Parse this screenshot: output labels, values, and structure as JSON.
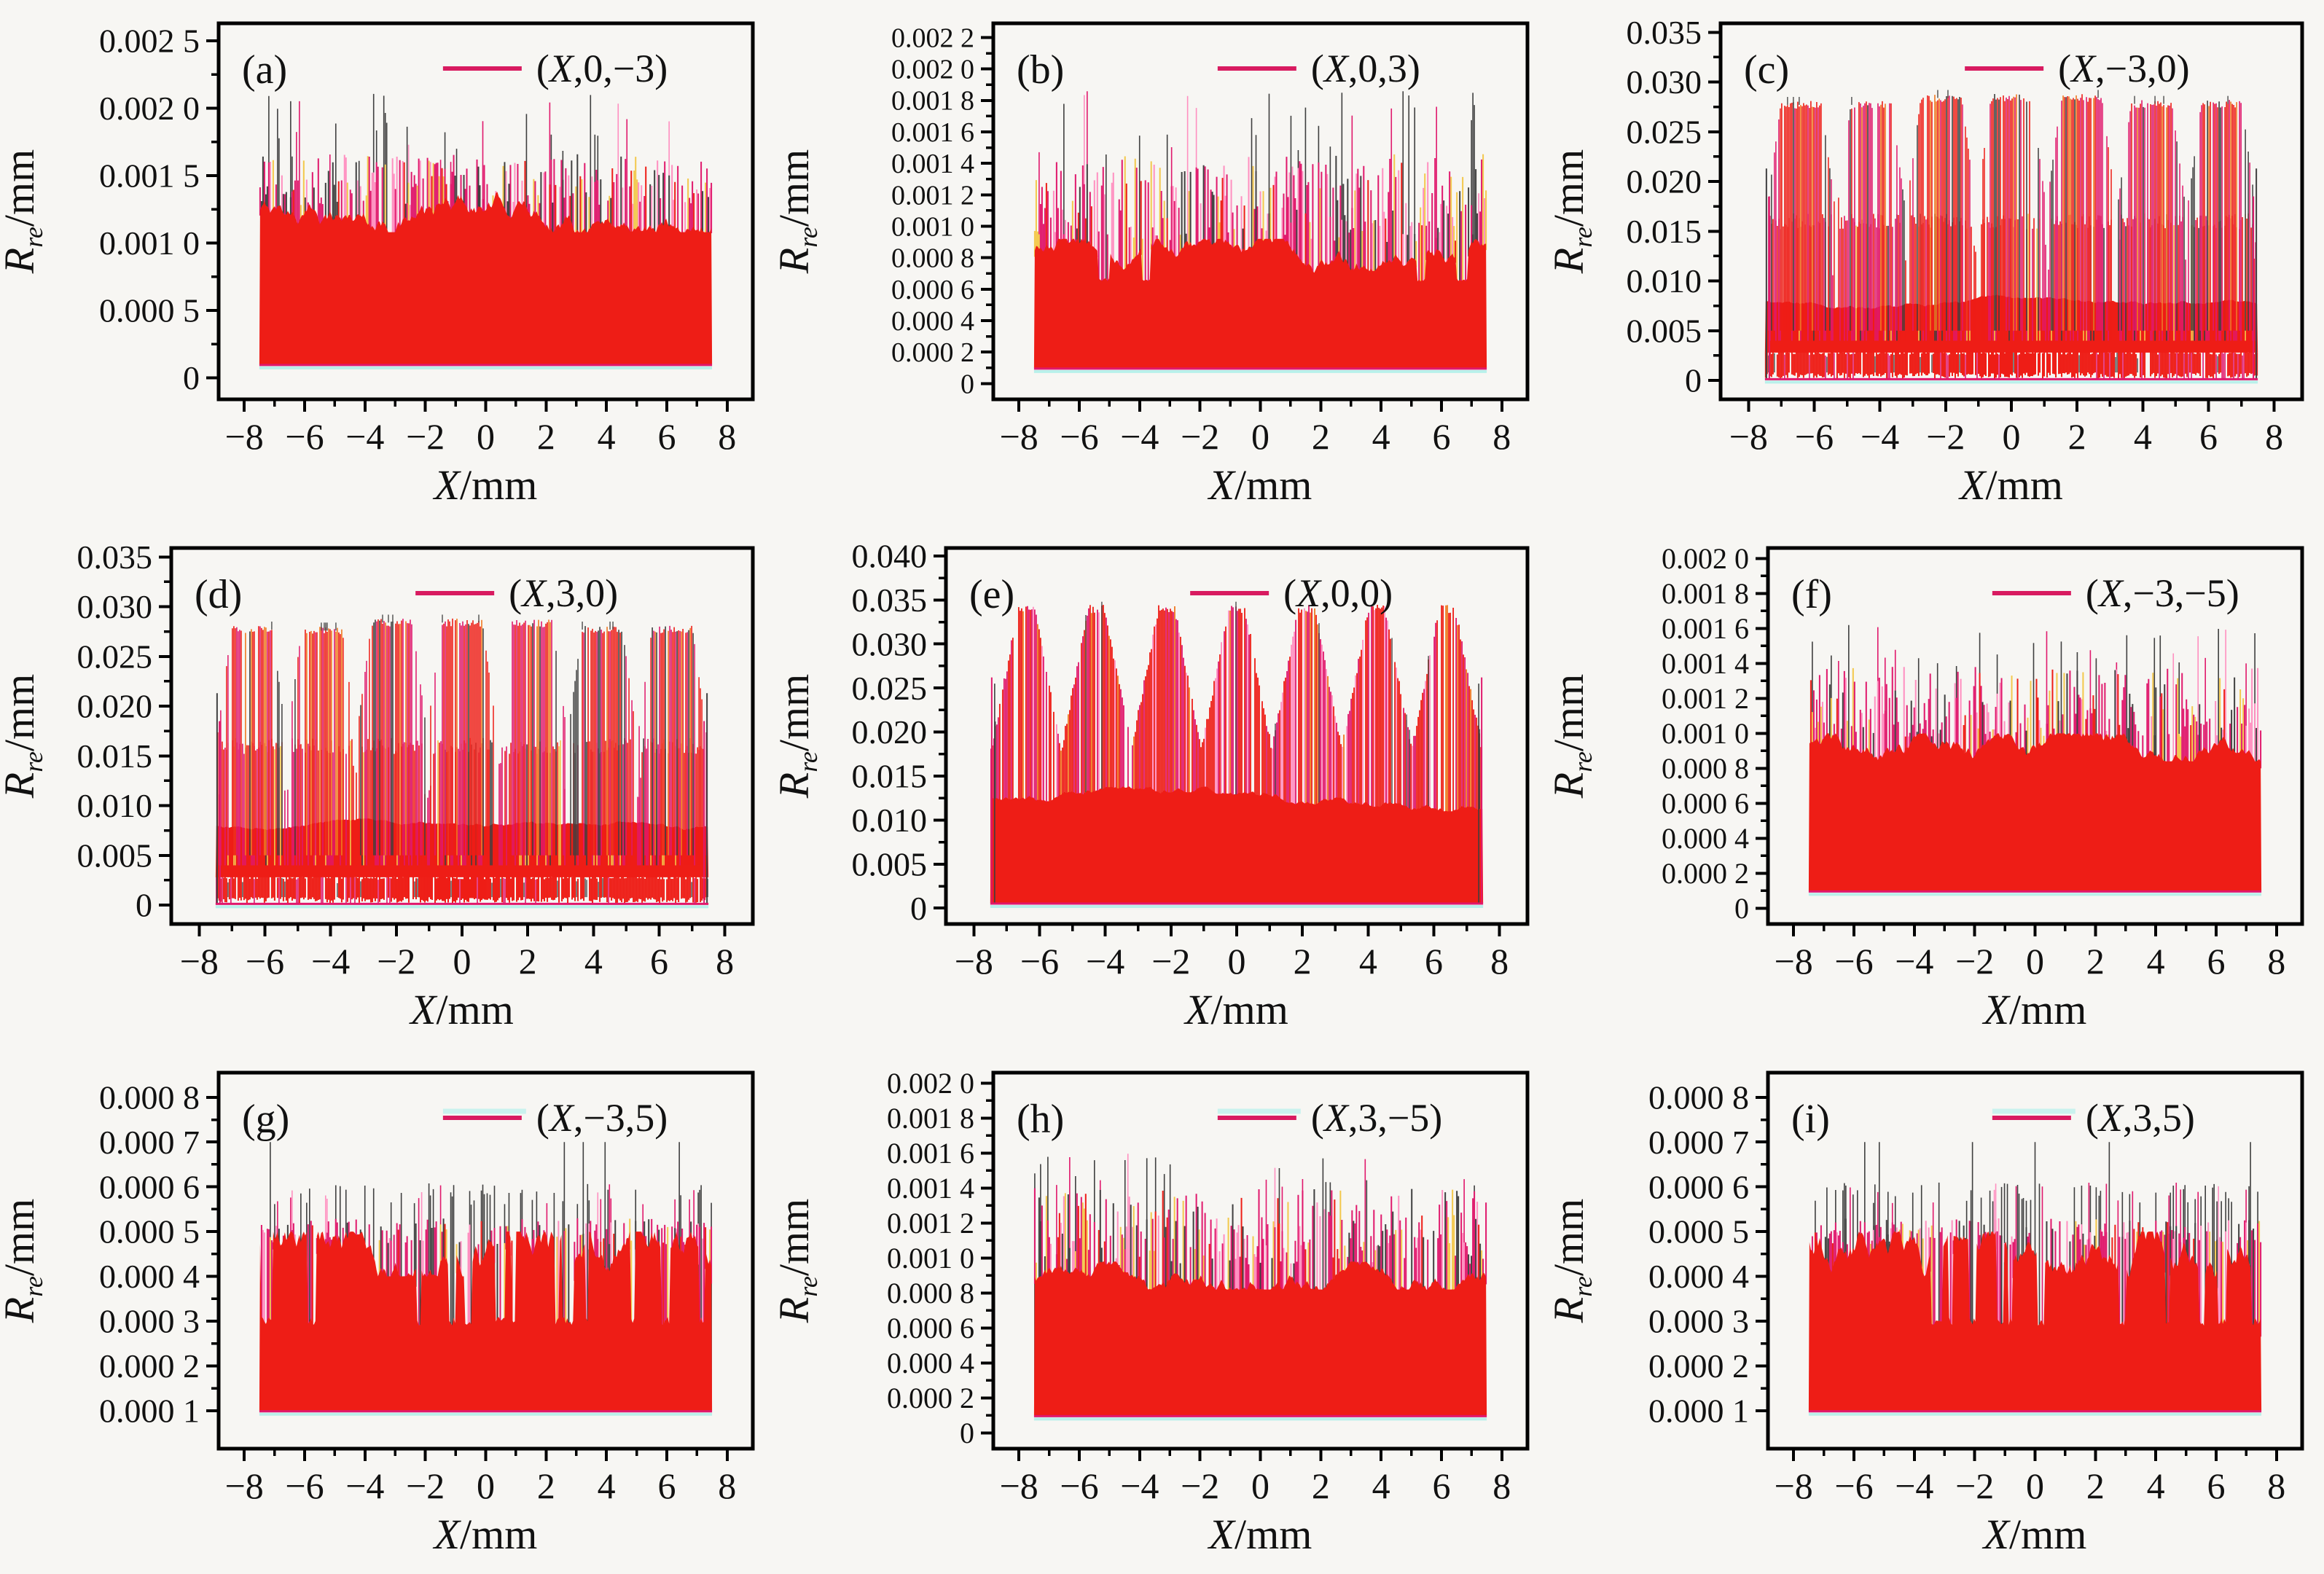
{
  "figure": {
    "background": "#f7f6f3",
    "grid": "3x3 subplots",
    "xlabel": "X/mm",
    "ylabel": {
      "main": "R",
      "sub": "re",
      "unit": "/mm"
    }
  },
  "colors": {
    "fill_red": "#ee1d16",
    "legend_line": "#d81b60",
    "crimson": "#e0186c",
    "dark": "#3f3f3f",
    "pink": "#ff8fc0",
    "yellow": "#f3c84b",
    "orange": "#f07820",
    "cyan_base": "#b9f0ea",
    "axis": "#000000",
    "text": "#111111",
    "legend_accent": "#c9f2ee"
  },
  "chart_data": [
    {
      "type": "area",
      "panel": "(a)",
      "legend": "(X,0,−3)",
      "xlabel": "X/mm",
      "ylabel": "Rre/mm",
      "xticks": [
        -8,
        -6,
        -4,
        -2,
        0,
        2,
        4,
        6,
        8
      ],
      "xtick_labels": [
        "−8",
        "−6",
        "−4",
        "−2",
        "0",
        "2",
        "4",
        "6",
        "8"
      ],
      "xlim": [
        -8.85,
        8.85
      ],
      "x_data_range": [
        -7.5,
        7.5
      ],
      "ytick_vals": [
        0,
        0.0005,
        0.001,
        0.0015,
        0.002,
        0.0025
      ],
      "ytick_labels": [
        "0",
        "0.000 5",
        "0.001 0",
        "0.001 5",
        "0.002 0",
        "0.002 5"
      ],
      "ylim": [
        -0.00016,
        0.00263
      ],
      "tick_font": 46,
      "margin_left": 300,
      "pattern": {
        "type": "noise",
        "base": 0.0001,
        "solid": {
          "mean": 0.00122,
          "step": 4e-05,
          "min": 0.00108,
          "max": 0.0014
        },
        "band": {
          "p": 0.7,
          "top": [
            0.00128,
            0.00166
          ]
        },
        "spikes": {
          "p": 0.14,
          "top": [
            0.00158,
            0.00212
          ]
        }
      }
    },
    {
      "type": "area",
      "panel": "(b)",
      "legend": "(X,0,3)",
      "xlabel": "X/mm",
      "ylabel": "Rre/mm",
      "xticks": [
        -8,
        -6,
        -4,
        -2,
        0,
        2,
        4,
        6,
        8
      ],
      "xtick_labels": [
        "−8",
        "−6",
        "−4",
        "−2",
        "0",
        "2",
        "4",
        "6",
        "8"
      ],
      "xlim": [
        -8.85,
        8.85
      ],
      "x_data_range": [
        -7.5,
        7.5
      ],
      "ytick_vals": [
        0,
        0.0002,
        0.0004,
        0.0006,
        0.0008,
        0.001,
        0.0012,
        0.0014,
        0.0016,
        0.0018,
        0.002,
        0.0022
      ],
      "ytick_labels": [
        "0",
        "0.000 2",
        "0.000 4",
        "0.000 6",
        "0.000 8",
        "0.001 0",
        "0.001 2",
        "0.001 4",
        "0.001 6",
        "0.001 8",
        "0.002 0",
        "0.002 2"
      ],
      "ylim": [
        -0.0001,
        0.00229
      ],
      "tick_font": 38,
      "margin_left": 300,
      "pattern": {
        "type": "noise",
        "base": 0.0001,
        "solid": {
          "mean": 0.00082,
          "step": 3e-05,
          "min": 0.0007,
          "max": 0.00092,
          "dip_to": 0.00066,
          "dip_p": 0.02
        },
        "band": {
          "p": 0.75,
          "top": [
            0.0009,
            0.00146
          ]
        },
        "spikes": {
          "p": 0.11,
          "top": [
            0.00142,
            0.00186
          ]
        }
      }
    },
    {
      "type": "area",
      "panel": "(c)",
      "legend": "(X,−3,0)",
      "xlabel": "X/mm",
      "ylabel": "Rre/mm",
      "xticks": [
        -8,
        -6,
        -4,
        -2,
        0,
        2,
        4,
        6,
        8
      ],
      "xtick_labels": [
        "−8",
        "−6",
        "−4",
        "−2",
        "0",
        "2",
        "4",
        "6",
        "8"
      ],
      "xlim": [
        -8.85,
        8.85
      ],
      "x_data_range": [
        -7.5,
        7.5
      ],
      "ytick_vals": [
        0,
        0.005,
        0.01,
        0.015,
        0.02,
        0.025,
        0.03,
        0.035
      ],
      "ytick_labels": [
        "0",
        "0.005",
        "0.010",
        "0.015",
        "0.020",
        "0.025",
        "0.030",
        "0.035"
      ],
      "ylim": [
        -0.0019,
        0.0359
      ],
      "tick_font": 46,
      "margin_left": 235,
      "pattern": {
        "type": "humps",
        "base": 0.0002,
        "bottom_zone_top": 0.003,
        "solid": {
          "mean": 0.008,
          "step": 0.0001,
          "min": 0.0072,
          "max": 0.0087
        },
        "centers": [
          -6.4,
          -4.266,
          -2.133,
          0,
          2.133,
          4.266,
          6.4
        ],
        "block_half": 0.62,
        "mid_half": 0.95,
        "mid_top": 0.016,
        "group_tops": [
          0.0277,
          0.0277,
          0.0284,
          0.0284,
          0.0284,
          0.0278,
          0.0278
        ],
        "trans_width": 0.42,
        "edge_spike": 0.0213
      }
    },
    {
      "type": "area",
      "panel": "(d)",
      "legend": "(X,3,0)",
      "xlabel": "X/mm",
      "ylabel": "Rre/mm",
      "xticks": [
        -8,
        -6,
        -4,
        -2,
        0,
        2,
        4,
        6,
        8
      ],
      "xtick_labels": [
        "−8",
        "−6",
        "−4",
        "−2",
        "0",
        "2",
        "4",
        "6",
        "8"
      ],
      "xlim": [
        -8.85,
        8.85
      ],
      "x_data_range": [
        -7.5,
        7.5
      ],
      "ytick_vals": [
        0,
        0.005,
        0.01,
        0.015,
        0.02,
        0.025,
        0.03,
        0.035
      ],
      "ytick_labels": [
        "0",
        "0.005",
        "0.010",
        "0.015",
        "0.020",
        "0.025",
        "0.030",
        "0.035"
      ],
      "ylim": [
        -0.0019,
        0.0359
      ],
      "tick_font": 46,
      "margin_left": 235,
      "pattern": {
        "type": "humps",
        "base": 0.0002,
        "bottom_zone_top": 0.003,
        "solid": {
          "mean": 0.008,
          "step": 0.0001,
          "min": 0.0072,
          "max": 0.0087
        },
        "centers": [
          -6.4,
          -4.266,
          -2.133,
          0,
          2.133,
          4.266,
          6.4
        ],
        "block_half": 0.62,
        "mid_half": 0.95,
        "mid_top": 0.016,
        "group_tops": [
          0.0277,
          0.0276,
          0.0284,
          0.0284,
          0.0283,
          0.0277,
          0.0277
        ],
        "trans_width": 0.42,
        "edge_spike": 0.0213
      }
    },
    {
      "type": "area",
      "panel": "(e)",
      "legend": "(X,0,0)",
      "xlabel": "X/mm",
      "ylabel": "Rre/mm",
      "xticks": [
        -8,
        -6,
        -4,
        -2,
        0,
        2,
        4,
        6,
        8
      ],
      "xtick_labels": [
        "−8",
        "−6",
        "−4",
        "−2",
        "0",
        "2",
        "4",
        "6",
        "8"
      ],
      "xlim": [
        -8.85,
        8.85
      ],
      "x_data_range": [
        -7.5,
        7.5
      ],
      "ytick_vals": [
        0,
        0.005,
        0.01,
        0.015,
        0.02,
        0.025,
        0.03,
        0.035,
        0.04
      ],
      "ytick_labels": [
        "0",
        "0.005",
        "0.010",
        "0.015",
        "0.020",
        "0.025",
        "0.030",
        "0.035",
        "0.040"
      ],
      "ylim": [
        -0.0018,
        0.0409
      ],
      "tick_font": 46,
      "margin_left": 235,
      "pattern": {
        "type": "peaks",
        "base": 0.0006,
        "centers": [
          -6.4,
          -4.266,
          -2.133,
          0,
          2.133,
          4.266,
          6.4
        ],
        "peak": 0.034,
        "valley": 0.018,
        "plateau": 0.25,
        "solid": {
          "mean": 0.0125,
          "step": 0.0002,
          "min": 0.011,
          "max": 0.0138
        },
        "edge_spike": 0.0262
      }
    },
    {
      "type": "area",
      "panel": "(f)",
      "legend": "(X,−3,−5)",
      "xlabel": "X/mm",
      "ylabel": "Rre/mm",
      "xticks": [
        -8,
        -6,
        -4,
        -2,
        0,
        2,
        4,
        6,
        8
      ],
      "xtick_labels": [
        "−8",
        "−6",
        "−4",
        "−2",
        "0",
        "2",
        "4",
        "6",
        "8"
      ],
      "xlim": [
        -8.85,
        8.85
      ],
      "x_data_range": [
        -7.5,
        7.5
      ],
      "ytick_vals": [
        0,
        0.0002,
        0.0004,
        0.0006,
        0.0008,
        0.001,
        0.0012,
        0.0014,
        0.0016,
        0.0018,
        0.002
      ],
      "ytick_labels": [
        "0",
        "0.000 2",
        "0.000 4",
        "0.000 6",
        "0.000 8",
        "0.001 0",
        "0.001 2",
        "0.001 4",
        "0.001 6",
        "0.001 8",
        "0.002 0"
      ],
      "ylim": [
        -9e-05,
        0.00206
      ],
      "tick_font": 40,
      "margin_left": 300,
      "pattern": {
        "type": "noise",
        "base": 0.0001,
        "solid": {
          "mean": 0.00092,
          "step": 2.5e-05,
          "min": 0.00084,
          "max": 0.001
        },
        "band": {
          "p": 0.7,
          "top": [
            0.00098,
            0.00138
          ]
        },
        "spikes": {
          "p": 0.09,
          "top": [
            0.00136,
            0.00162
          ]
        }
      }
    },
    {
      "type": "area",
      "panel": "(g)",
      "legend": "(X,−3,5)",
      "xlabel": "X/mm",
      "ylabel": "Rre/mm",
      "xticks": [
        -8,
        -6,
        -4,
        -2,
        0,
        2,
        4,
        6,
        8
      ],
      "xtick_labels": [
        "−8",
        "−6",
        "−4",
        "−2",
        "0",
        "2",
        "4",
        "6",
        "8"
      ],
      "xlim": [
        -8.85,
        8.85
      ],
      "x_data_range": [
        -7.5,
        7.5
      ],
      "ytick_vals": [
        0.0001,
        0.0002,
        0.0003,
        0.0004,
        0.0005,
        0.0006,
        0.0007,
        0.0008
      ],
      "ytick_labels": [
        "0.000 1",
        "0.000 2",
        "0.000 3",
        "0.000 4",
        "0.000 5",
        "0.000 6",
        "0.000 7",
        "0.000 8"
      ],
      "ylim": [
        1.5e-05,
        0.000855
      ],
      "tick_font": 46,
      "margin_left": 300,
      "legend_accent": true,
      "pattern": {
        "type": "noise",
        "base": 0.0001,
        "solid": {
          "mean": 0.00046,
          "step": 2e-05,
          "min": 0.0004,
          "max": 0.0005,
          "dip_to": 0.0003,
          "dip_p": 0.05
        },
        "band": {
          "p": 0.55,
          "top": [
            0.00047,
            0.00053
          ]
        },
        "spikes": {
          "p": 0.24,
          "top": [
            0.00056,
            0.00061
          ],
          "rare_p": 0.02,
          "rare_top": 0.0007
        }
      }
    },
    {
      "type": "area",
      "panel": "(h)",
      "legend": "(X,3,−5)",
      "xlabel": "X/mm",
      "ylabel": "Rre/mm",
      "xticks": [
        -8,
        -6,
        -4,
        -2,
        0,
        2,
        4,
        6,
        8
      ],
      "xtick_labels": [
        "−8",
        "−6",
        "−4",
        "−2",
        "0",
        "2",
        "4",
        "6",
        "8"
      ],
      "xlim": [
        -8.85,
        8.85
      ],
      "x_data_range": [
        -7.5,
        7.5
      ],
      "ytick_vals": [
        0,
        0.0002,
        0.0004,
        0.0006,
        0.0008,
        0.001,
        0.0012,
        0.0014,
        0.0016,
        0.0018,
        0.002
      ],
      "ytick_labels": [
        "0",
        "0.000 2",
        "0.000 4",
        "0.000 6",
        "0.000 8",
        "0.001 0",
        "0.001 2",
        "0.001 4",
        "0.001 6",
        "0.001 8",
        "0.002 0"
      ],
      "ylim": [
        -9e-05,
        0.00206
      ],
      "tick_font": 40,
      "margin_left": 300,
      "legend_accent": true,
      "pattern": {
        "type": "noise",
        "base": 0.0001,
        "solid": {
          "mean": 0.0009,
          "step": 2.5e-05,
          "min": 0.00082,
          "max": 0.00098
        },
        "band": {
          "p": 0.72,
          "top": [
            0.00096,
            0.0014
          ]
        },
        "spikes": {
          "p": 0.1,
          "top": [
            0.00138,
            0.0016
          ]
        }
      }
    },
    {
      "type": "area",
      "panel": "(i)",
      "legend": "(X,3,5)",
      "xlabel": "X/mm",
      "ylabel": "Rre/mm",
      "xticks": [
        -8,
        -6,
        -4,
        -2,
        0,
        2,
        4,
        6,
        8
      ],
      "xtick_labels": [
        "−8",
        "−6",
        "−4",
        "−2",
        "0",
        "2",
        "4",
        "6",
        "8"
      ],
      "xlim": [
        -8.85,
        8.85
      ],
      "x_data_range": [
        -7.5,
        7.5
      ],
      "ytick_vals": [
        0.0001,
        0.0002,
        0.0003,
        0.0004,
        0.0005,
        0.0006,
        0.0007,
        0.0008
      ],
      "ytick_labels": [
        "0.000 1",
        "0.000 2",
        "0.000 3",
        "0.000 4",
        "0.000 5",
        "0.000 6",
        "0.000 7",
        "0.000 8"
      ],
      "ylim": [
        1.5e-05,
        0.000855
      ],
      "tick_font": 46,
      "margin_left": 300,
      "legend_accent": true,
      "pattern": {
        "type": "noise",
        "base": 0.0001,
        "solid": {
          "mean": 0.00046,
          "step": 2e-05,
          "min": 0.0004,
          "max": 0.0005,
          "dip_to": 0.0003,
          "dip_p": 0.05
        },
        "band": {
          "p": 0.55,
          "top": [
            0.00047,
            0.00053
          ]
        },
        "spikes": {
          "p": 0.24,
          "top": [
            0.00056,
            0.00061
          ],
          "rare_p": 0.02,
          "rare_top": 0.0007
        }
      }
    }
  ]
}
